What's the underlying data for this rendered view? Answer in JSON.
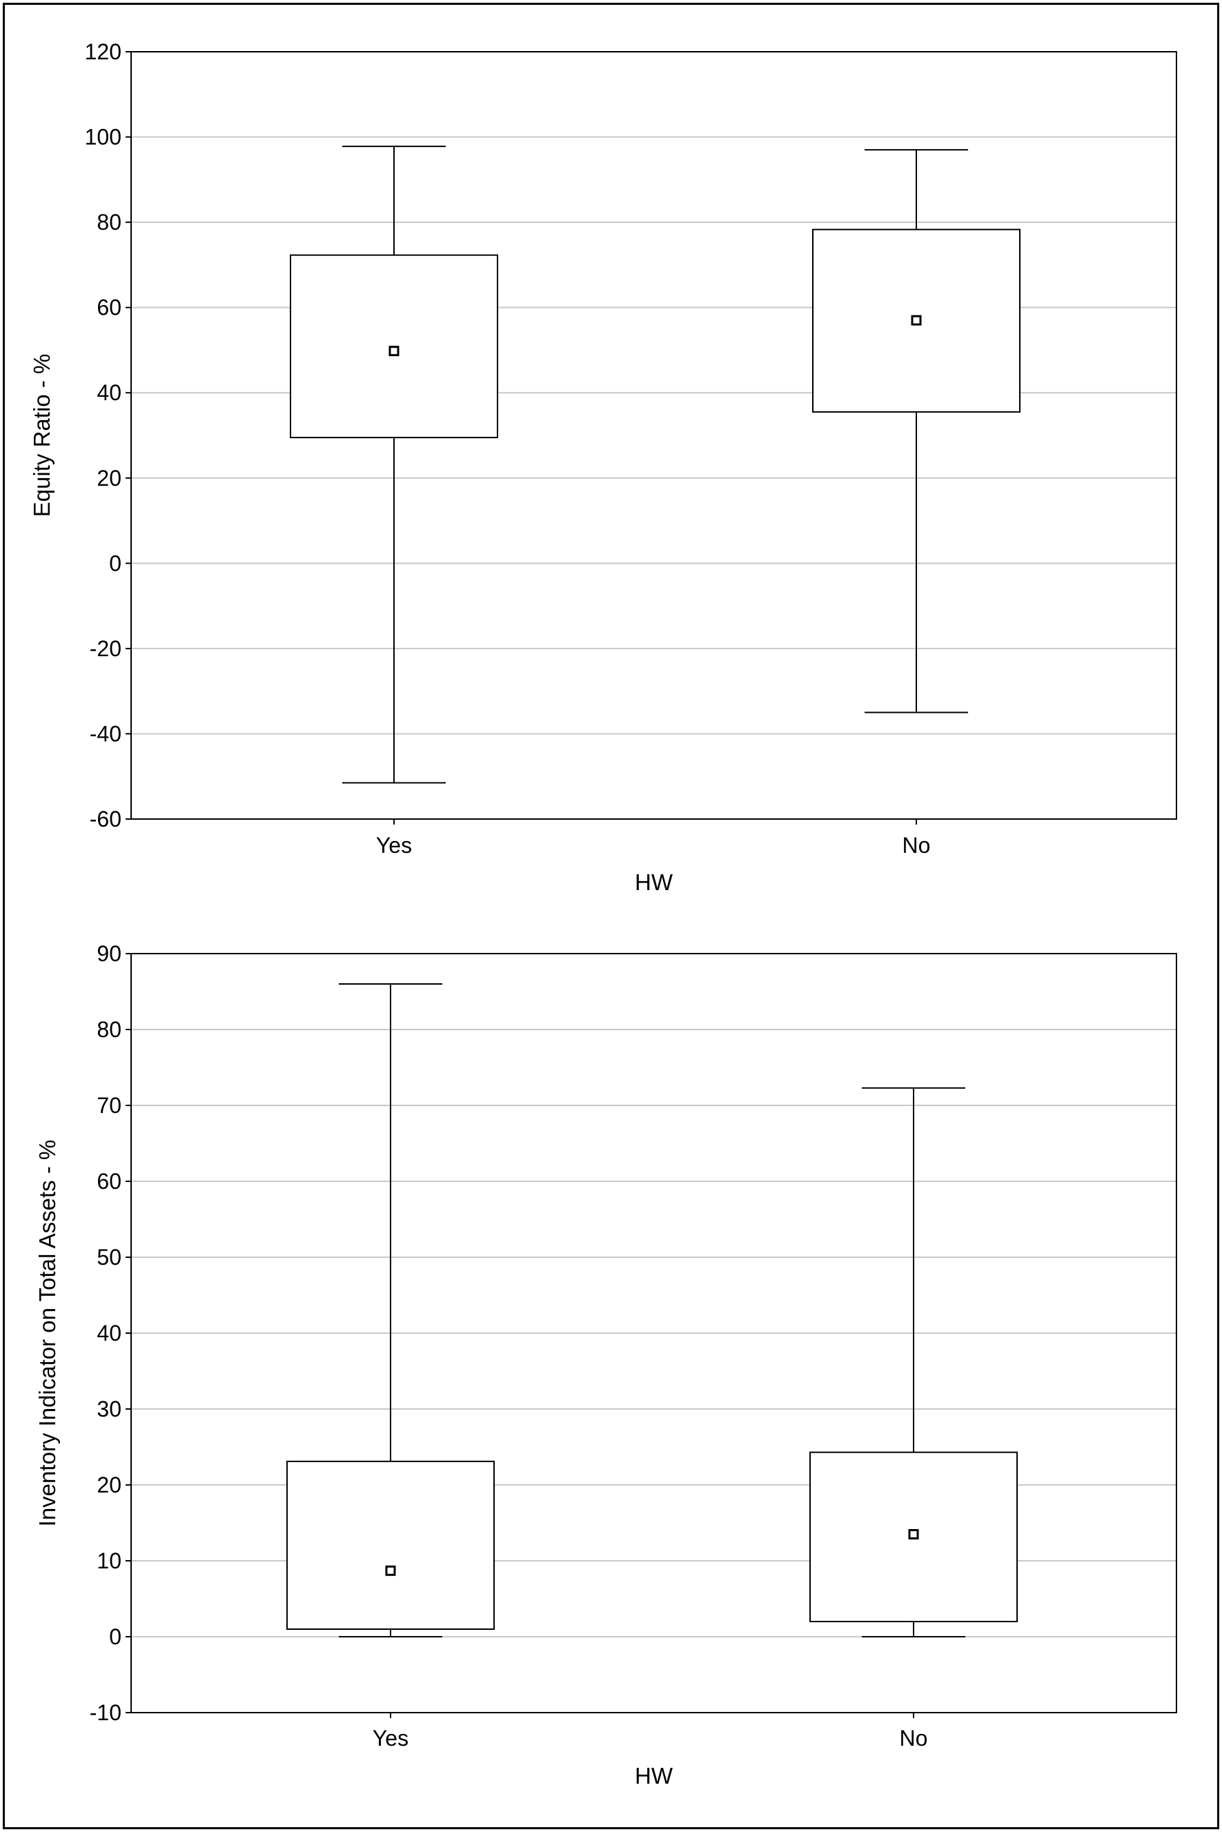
{
  "chart_data": [
    {
      "type": "box",
      "xlabel": "HW",
      "ylabel": "Equity Ratio - %",
      "ylim": [
        -60,
        120
      ],
      "yticks": [
        -60,
        -40,
        -20,
        0,
        20,
        40,
        60,
        80,
        100,
        120
      ],
      "categories": [
        "Yes",
        "No"
      ],
      "grid": true,
      "boxes": [
        {
          "category": "Yes",
          "whisker_low": -51.5,
          "q1": 29.5,
          "median": 49.8,
          "q3": 72.3,
          "whisker_high": 97.8
        },
        {
          "category": "No",
          "whisker_low": -35.0,
          "q1": 35.5,
          "median": 57.0,
          "q3": 78.3,
          "whisker_high": 97.0
        }
      ]
    },
    {
      "type": "box",
      "xlabel": "HW",
      "ylabel": "Inventory Indicator on Total Assets - %",
      "ylim": [
        -10,
        90
      ],
      "yticks": [
        -10,
        0,
        10,
        20,
        30,
        40,
        50,
        60,
        70,
        80,
        90
      ],
      "categories": [
        "Yes",
        "No"
      ],
      "grid": true,
      "boxes": [
        {
          "category": "Yes",
          "whisker_low": 0.0,
          "q1": 1.0,
          "median": 8.7,
          "q3": 23.1,
          "whisker_high": 86.0
        },
        {
          "category": "No",
          "whisker_low": 0.0,
          "q1": 2.0,
          "median": 13.5,
          "q3": 24.3,
          "whisker_high": 72.3
        }
      ]
    }
  ]
}
